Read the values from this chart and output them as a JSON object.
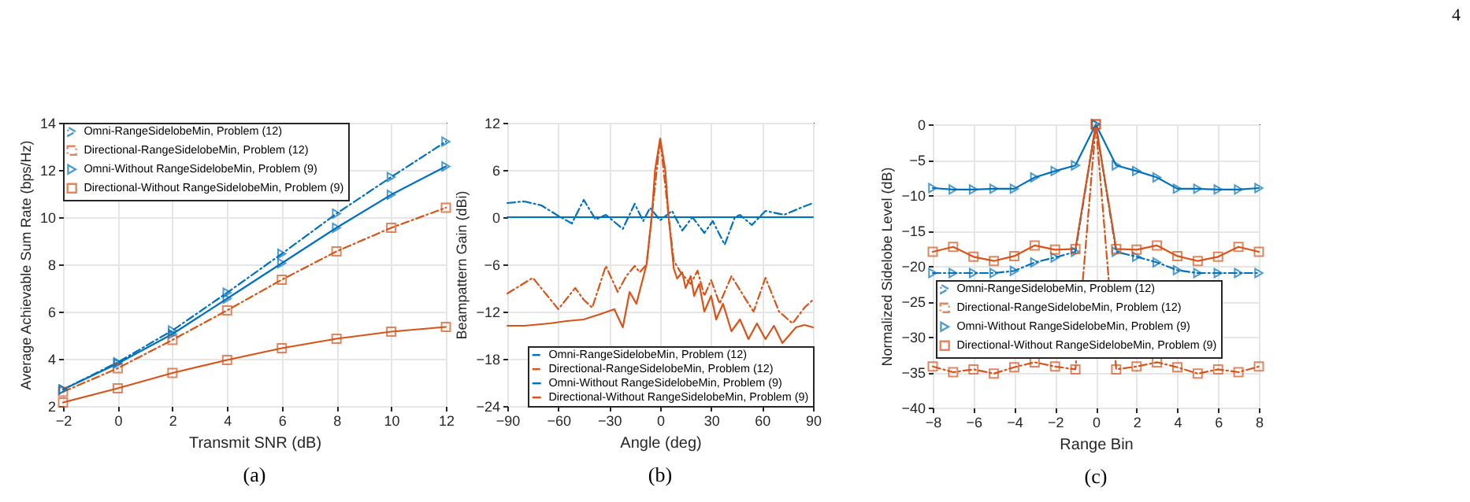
{
  "chart_data": [
    {
      "type": "line",
      "xlabel": "Transmit SNR (dB)",
      "ylabel": "Average Achievable Sum Rate (bps/Hz)",
      "x": [
        -2,
        0,
        2,
        4,
        6,
        8,
        10,
        12
      ],
      "xlim": [
        -2,
        12
      ],
      "xticks": [
        -2,
        0,
        2,
        4,
        6,
        8,
        10,
        12
      ],
      "ylim": [
        2,
        14
      ],
      "yticks": [
        2,
        4,
        6,
        8,
        10,
        12,
        14
      ],
      "grid": true,
      "legend": "top left",
      "annotations": [
        "(a)"
      ],
      "series": [
        {
          "name": "Omni-RangeSidelobeMin, Problem (12)",
          "color": "#0072bd",
          "line_style": "dashed",
          "marker": "triangle",
          "values": [
            2.7,
            3.85,
            5.2,
            6.8,
            8.45,
            10.15,
            11.7,
            13.2
          ]
        },
        {
          "name": "Directional-RangeSidelobeMin, Problem (12)",
          "color": "#d95319",
          "line_style": "dashed",
          "marker": "square",
          "values": [
            2.6,
            3.6,
            4.8,
            6.05,
            7.35,
            8.55,
            9.55,
            10.4
          ]
        },
        {
          "name": "Omni-Without RangeSidelobeMin, Problem (9)",
          "color": "#0072bd",
          "line_style": "solid",
          "marker": "triangle",
          "values": [
            2.7,
            3.8,
            5.05,
            6.55,
            8.05,
            9.55,
            10.95,
            12.15
          ]
        },
        {
          "name": "Directional-Without RangeSidelobeMin, Problem (9)",
          "color": "#d95319",
          "line_style": "solid",
          "marker": "square",
          "values": [
            2.15,
            2.75,
            3.4,
            3.95,
            4.45,
            4.85,
            5.15,
            5.35
          ]
        }
      ]
    },
    {
      "type": "line",
      "xlabel": "Angle (deg)",
      "ylabel": "Beampattern Gain (dBi)",
      "xlim": [
        -90,
        90
      ],
      "xticks": [
        -90,
        -60,
        -30,
        0,
        30,
        60,
        90
      ],
      "ylim": [
        -24,
        12
      ],
      "yticks": [
        -24,
        -18,
        -12,
        -6,
        0,
        6,
        12
      ],
      "grid": true,
      "legend": "bottom",
      "annotations": [
        "(b)"
      ],
      "series": [
        {
          "name": "Omni-RangeSidelobeMin, Problem (12)",
          "color": "#0072bd",
          "line_style": "dashed",
          "x": [
            -90,
            -80,
            -70,
            -61,
            -52,
            -45,
            -38,
            -32,
            -22,
            -15,
            -10,
            -6,
            0,
            7,
            13,
            19,
            26,
            31,
            38,
            44,
            47,
            54,
            62,
            73,
            84,
            90
          ],
          "values": [
            1.8,
            2.0,
            1.5,
            0.3,
            -0.8,
            2.2,
            -0.3,
            0.3,
            -1.5,
            1.7,
            -0.5,
            1.2,
            -0.4,
            0.8,
            -1.7,
            0.0,
            -2.0,
            -0.5,
            -3.5,
            0.0,
            0.3,
            -1.0,
            0.8,
            0.3,
            1.3,
            1.8
          ]
        },
        {
          "name": "Directional-RangeSidelobeMin, Problem (12)",
          "color": "#d95319",
          "line_style": "dashed",
          "x": [
            -90,
            -75,
            -60,
            -50,
            -45,
            -40,
            -32,
            -25,
            -20,
            -15,
            -12,
            -8,
            -5,
            0,
            5,
            8,
            12,
            18,
            22,
            26,
            30,
            35,
            42,
            52,
            55,
            62,
            70,
            78,
            85,
            90
          ],
          "values": [
            -9.7,
            -7.7,
            -11.7,
            -9,
            -10.5,
            -11.5,
            -6.2,
            -9.5,
            -7.5,
            -6.2,
            -7,
            -6,
            0,
            10,
            0,
            -5.5,
            -7,
            -8.5,
            -6.8,
            -10,
            -8,
            -11,
            -7.5,
            -11,
            -12,
            -7.7,
            -12,
            -13.5,
            -11.5,
            -10.5
          ]
        },
        {
          "name": "Omni-Without RangeSidelobeMin, Problem (9)",
          "color": "#0072bd",
          "line_style": "solid",
          "x": [
            -90,
            90
          ],
          "values": [
            0,
            0
          ]
        },
        {
          "name": "Directional-Without RangeSidelobeMin, Problem (9)",
          "color": "#d95319",
          "line_style": "solid",
          "x": [
            -90,
            -80,
            -65,
            -55,
            -45,
            -35,
            -27,
            -22,
            -18,
            -14,
            -11,
            -8,
            -5,
            -3,
            0,
            3,
            5,
            8,
            10,
            13,
            15,
            18,
            20,
            23,
            26,
            30,
            33,
            37,
            42,
            47,
            52,
            57,
            62,
            67,
            72,
            80,
            85,
            90
          ],
          "values": [
            -13.8,
            -13.8,
            -13.5,
            -13.2,
            -13,
            -12.3,
            -11.7,
            -14,
            -9.5,
            -11,
            -8.5,
            -6,
            0,
            6,
            10,
            6,
            0,
            -6.5,
            -7.8,
            -7,
            -9,
            -7.5,
            -10,
            -8.5,
            -12,
            -10,
            -13,
            -11,
            -14.5,
            -13,
            -15.5,
            -13.5,
            -15.5,
            -13.8,
            -16,
            -14,
            -13.7,
            -14
          ]
        }
      ]
    },
    {
      "type": "line",
      "xlabel": "Range Bin",
      "ylabel": "Normalized Sidelobe Level (dB)",
      "x": [
        -8,
        -7,
        -6,
        -5,
        -4,
        -3,
        -2,
        -1,
        0,
        1,
        2,
        3,
        4,
        5,
        6,
        7,
        8
      ],
      "xlim": [
        -8,
        8
      ],
      "xticks": [
        -8,
        -6,
        -4,
        -2,
        0,
        2,
        4,
        6,
        8
      ],
      "ylim": [
        -40,
        0
      ],
      "yticks": [
        -40,
        -35,
        -30,
        -25,
        -20,
        -15,
        -10,
        -5,
        0
      ],
      "grid": true,
      "legend": "left",
      "annotations": [
        "(c)",
        "4"
      ],
      "series": [
        {
          "name": "Omni-RangeSidelobeMin, Problem (12)",
          "color": "#0072bd",
          "line_style": "dashed",
          "marker": "triangle",
          "values": [
            -21,
            -21,
            -21,
            -21,
            -20.7,
            -19.5,
            -18.8,
            -18,
            0,
            -18,
            -18.7,
            -19.5,
            -20.6,
            -21,
            -21,
            -21,
            -21
          ]
        },
        {
          "name": "Directional-RangeSidelobeMin, Problem (12)",
          "color": "#d95319",
          "line_style": "dashed",
          "marker": "square",
          "values": [
            -34.2,
            -35,
            -34.6,
            -35.2,
            -34.3,
            -33.6,
            -34.2,
            -34.6,
            0,
            -34.6,
            -34.2,
            -33.6,
            -34.3,
            -35.2,
            -34.6,
            -35,
            -34.2
          ]
        },
        {
          "name": "Omni-Without RangeSidelobeMin, Problem (9)",
          "color": "#0072bd",
          "line_style": "solid",
          "marker": "triangle",
          "values": [
            -9,
            -9.2,
            -9.2,
            -9.1,
            -9.1,
            -7.5,
            -6.6,
            -5.8,
            0,
            -5.8,
            -6.6,
            -7.5,
            -9.1,
            -9.1,
            -9.2,
            -9.2,
            -9
          ]
        },
        {
          "name": "Directional-Without RangeSidelobeMin, Problem (9)",
          "color": "#d95319",
          "line_style": "solid",
          "marker": "square",
          "values": [
            -18,
            -17.3,
            -18.7,
            -19.3,
            -18.6,
            -17.1,
            -17.7,
            -17.6,
            0,
            -17.6,
            -17.7,
            -17.1,
            -18.6,
            -19.3,
            -18.7,
            -17.3,
            -18
          ]
        }
      ]
    }
  ]
}
